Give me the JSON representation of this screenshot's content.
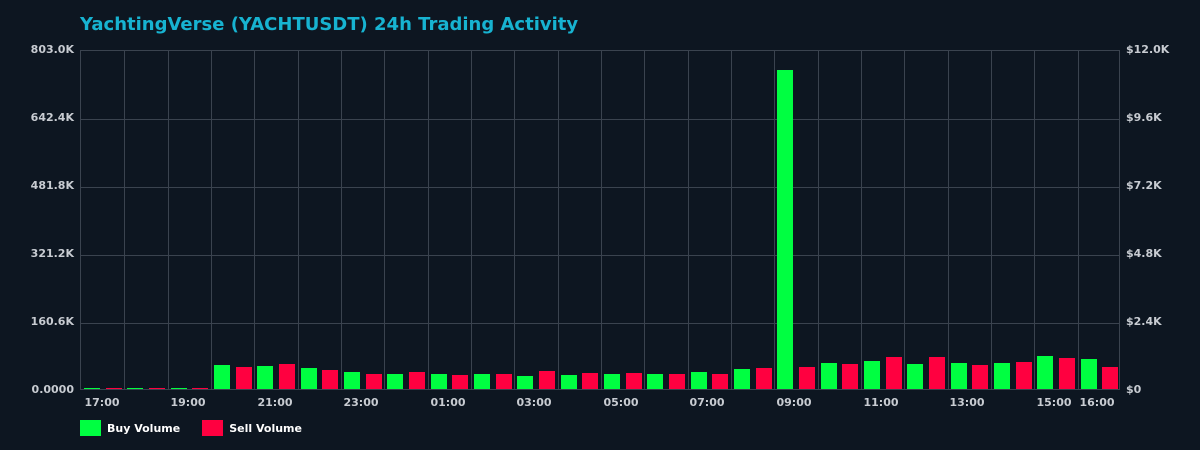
{
  "title": "YachtingVerse (YACHTUSDT) 24h Trading Activity",
  "colors": {
    "buy": "#00ff41",
    "sell": "#ff0040",
    "background": "#0d1621",
    "title": "#17b3d1",
    "grid": "#3a434f"
  },
  "legend": [
    {
      "label": "Buy Volume",
      "color": "#00ff41"
    },
    {
      "label": "Sell Volume",
      "color": "#ff0040"
    }
  ],
  "chart_data": {
    "type": "bar",
    "title": "YachtingVerse (YACHTUSDT) 24h Trading Activity",
    "xlabel": "",
    "ylabel": "",
    "ylim": [
      0,
      803000
    ],
    "ylim_right": [
      0,
      12000
    ],
    "y_ticks_left": [
      "0.0000",
      "160.6K",
      "321.2K",
      "481.8K",
      "642.4K",
      "803.0K"
    ],
    "y_ticks_right": [
      "$0",
      "$2.4K",
      "$4.8K",
      "$7.2K",
      "$9.6K",
      "$12.0K"
    ],
    "x_ticks": [
      "17:00",
      "19:00",
      "21:00",
      "23:00",
      "01:00",
      "03:00",
      "05:00",
      "07:00",
      "09:00",
      "11:00",
      "13:00",
      "15:00",
      "16:00"
    ],
    "grid": true,
    "legend_position": "bottom-left",
    "series": [
      {
        "name": "Buy Volume",
        "color": "#00ff41"
      },
      {
        "name": "Sell Volume",
        "color": "#ff0040"
      }
    ],
    "bars": [
      {
        "s": "buy",
        "v": 2500
      },
      {
        "s": "sell",
        "v": 2500
      },
      {
        "s": "buy",
        "v": 2500
      },
      {
        "s": "sell",
        "v": 2500
      },
      {
        "s": "buy",
        "v": 2500
      },
      {
        "s": "sell",
        "v": 2500
      },
      {
        "s": "buy",
        "v": 57000
      },
      {
        "s": "sell",
        "v": 52000
      },
      {
        "s": "buy",
        "v": 54000
      },
      {
        "s": "sell",
        "v": 59000
      },
      {
        "s": "buy",
        "v": 50000
      },
      {
        "s": "sell",
        "v": 45000
      },
      {
        "s": "buy",
        "v": 40000
      },
      {
        "s": "sell",
        "v": 35000
      },
      {
        "s": "buy",
        "v": 35000
      },
      {
        "s": "sell",
        "v": 40000
      },
      {
        "s": "buy",
        "v": 35000
      },
      {
        "s": "sell",
        "v": 33000
      },
      {
        "s": "buy",
        "v": 35000
      },
      {
        "s": "sell",
        "v": 35000
      },
      {
        "s": "buy",
        "v": 31000
      },
      {
        "s": "sell",
        "v": 43000
      },
      {
        "s": "buy",
        "v": 33000
      },
      {
        "s": "sell",
        "v": 38000
      },
      {
        "s": "buy",
        "v": 35000
      },
      {
        "s": "sell",
        "v": 38000
      },
      {
        "s": "buy",
        "v": 35000
      },
      {
        "s": "sell",
        "v": 35000
      },
      {
        "s": "buy",
        "v": 40000
      },
      {
        "s": "sell",
        "v": 35000
      },
      {
        "s": "buy",
        "v": 47000
      },
      {
        "s": "sell",
        "v": 50000
      },
      {
        "s": "buy",
        "v": 753000
      },
      {
        "s": "sell",
        "v": 52000
      },
      {
        "s": "buy",
        "v": 61000
      },
      {
        "s": "sell",
        "v": 59000
      },
      {
        "s": "buy",
        "v": 66000
      },
      {
        "s": "sell",
        "v": 76000
      },
      {
        "s": "buy",
        "v": 59000
      },
      {
        "s": "sell",
        "v": 76000
      },
      {
        "s": "buy",
        "v": 61000
      },
      {
        "s": "sell",
        "v": 57000
      },
      {
        "s": "buy",
        "v": 61000
      },
      {
        "s": "sell",
        "v": 64000
      },
      {
        "s": "buy",
        "v": 78000
      },
      {
        "s": "sell",
        "v": 73000
      },
      {
        "s": "buy",
        "v": 71000
      },
      {
        "s": "sell",
        "v": 52000
      }
    ]
  }
}
